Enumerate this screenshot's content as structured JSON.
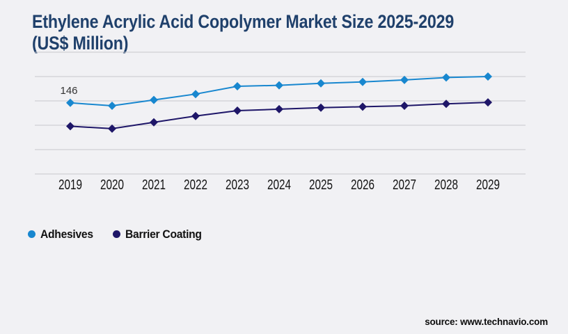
{
  "header": {
    "title_line1": "Ethylene Acrylic Acid Copolymer Market Size 2025-2029",
    "title_line2": "(US$ Million)"
  },
  "theme": {
    "background": "#f1f1f4",
    "title_color": "#1f406b",
    "gridline_color": "#c8c8cc",
    "axis_label_color": "#141414",
    "annotation_color": "#333333"
  },
  "chart_data": {
    "type": "line",
    "title": "Ethylene Acrylic Acid Copolymer Market Size 2025-2029 (US$ Million)",
    "xlabel": "",
    "ylabel": "US$ Million",
    "categories": [
      "2019",
      "2020",
      "2021",
      "2022",
      "2023",
      "2024",
      "2025",
      "2026",
      "2027",
      "2028",
      "2029"
    ],
    "series": [
      {
        "name": "Adhesives",
        "color": "#1887cf",
        "marker": "diamond",
        "values": [
          146,
          140,
          152,
          164,
          180,
          182,
          186,
          189,
          193,
          198,
          200
        ]
      },
      {
        "name": "Barrier Coating",
        "color": "#1e1668",
        "marker": "diamond",
        "values": [
          98,
          93,
          106,
          119,
          130,
          133,
          136,
          138,
          140,
          144,
          147
        ]
      }
    ],
    "annotations": [
      {
        "series": "Adhesives",
        "category": "2019",
        "text": "146"
      }
    ],
    "ylim": [
      0,
      250
    ],
    "gridline_step": 50,
    "grid": "horizontal",
    "y_axis_labels_visible": false,
    "legend_position": "bottom-left"
  },
  "legend": {
    "items": [
      {
        "label": "Adhesives",
        "color": "#1887cf"
      },
      {
        "label": "Barrier Coating",
        "color": "#1e1668"
      }
    ]
  },
  "footer": {
    "source_text": "source: www.technavio.com"
  }
}
